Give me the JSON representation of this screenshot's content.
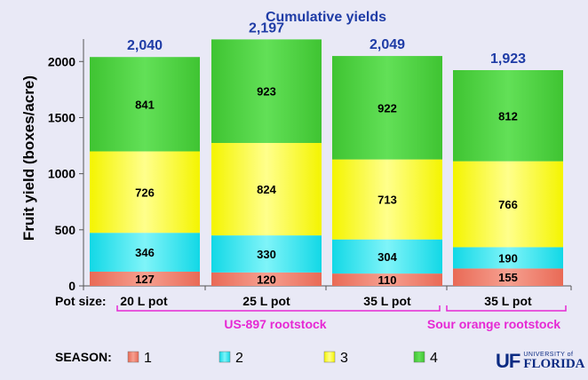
{
  "colors": {
    "season_1": "#ef7f6c",
    "season_2": "#1ee4ef",
    "season_3": "#fbfb14",
    "season_4": "#4acf3f",
    "total_label": "#1f3ca6",
    "rootstock_label": "#e628d4"
  },
  "chart_data": {
    "type": "bar",
    "stacked": true,
    "title": "Cumulative yields",
    "ylabel": "Fruit yield (boxes/acre)",
    "ylim": [
      0,
      2200
    ],
    "yticks": [
      "0",
      "500",
      "1000",
      "1500",
      "2000"
    ],
    "x_prefix": "Pot size:",
    "categories": [
      "20 L pot",
      "25 L pot",
      "35 L pot",
      "35 L pot"
    ],
    "groups": [
      {
        "label": "US-897 rootstock",
        "categories": [
          0,
          1,
          2
        ]
      },
      {
        "label": "Sour  orange rootstock",
        "categories": [
          3
        ]
      }
    ],
    "series": [
      {
        "name": "1",
        "values": [
          127,
          120,
          110,
          155
        ]
      },
      {
        "name": "2",
        "values": [
          346,
          330,
          304,
          190
        ]
      },
      {
        "name": "3",
        "values": [
          726,
          824,
          713,
          766
        ]
      },
      {
        "name": "4",
        "values": [
          841,
          923,
          922,
          812
        ]
      }
    ],
    "totals": [
      "2,040",
      "2,197",
      "2,049",
      "1,923"
    ],
    "legend_title": "SEASON:",
    "legend_position": "bottom-left",
    "grid": false
  },
  "logo": {
    "uf": "UF",
    "university_of": "UNIVERSITY of",
    "florida": "FLORIDA"
  }
}
